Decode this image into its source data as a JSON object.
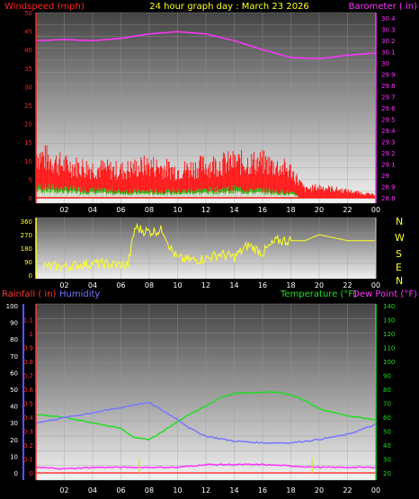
{
  "header": {
    "title": "24 hour graph day : March 23 2026",
    "left_label": "Windspeed (mph)",
    "right_label": "Barometer ( in)"
  },
  "colors": {
    "wind": "#ff1a1a",
    "gust_green": "#22cc22",
    "gust_white": "#e8e8e8",
    "barometer": "#ff33ff",
    "direction": "#ffff22",
    "rain": "#ff3b3b",
    "humidity": "#7777ff",
    "temperature": "#22dd22",
    "dewpoint": "#ff33ff",
    "rain_axis": "#ff3333",
    "humidity_axis": "#5555ff"
  },
  "bottom_header": {
    "rain_label": "Rainfall ( in)",
    "humidity_label": "Humidity",
    "temp_label": "Temperature (°F)",
    "dew_label": "Dew Point (°F)"
  },
  "compass": [
    "N",
    "W",
    "S",
    "E",
    "N"
  ],
  "chart_data": [
    {
      "type": "line",
      "name": "wind-barometer",
      "x_ticks": [
        "02",
        "04",
        "06",
        "08",
        "10",
        "12",
        "14",
        "16",
        "18",
        "20",
        "22",
        "00"
      ],
      "left_axis": {
        "label": "Windspeed (mph)",
        "ticks": [
          0,
          5,
          10,
          15,
          20,
          25,
          30,
          35,
          40,
          45,
          50
        ],
        "range": [
          0,
          50
        ]
      },
      "right_axis": {
        "label": "Barometer ( in)",
        "ticks": [
          "28.8",
          "28.9",
          "29",
          "29.1",
          "29.2",
          "29.3",
          "29.4",
          "29.5",
          "29.6",
          "29.7",
          "29.8",
          "29.9",
          "30",
          "30.1",
          "30.2",
          "30.3",
          "30.4"
        ],
        "range": [
          28.8,
          30.45
        ]
      },
      "barometer": {
        "x": [
          0,
          2,
          4,
          6,
          8,
          10,
          12,
          14,
          16,
          18,
          20,
          22,
          24
        ],
        "y": [
          30.2,
          30.21,
          30.2,
          30.22,
          30.26,
          30.28,
          30.26,
          30.2,
          30.12,
          30.05,
          30.04,
          30.07,
          30.09
        ]
      },
      "wind_avg": {
        "x": [
          0,
          2,
          4,
          6,
          8,
          10,
          12,
          14,
          16,
          18,
          19,
          20,
          24
        ],
        "y": [
          9,
          7,
          6,
          5,
          5,
          5,
          6,
          7,
          6,
          4,
          1,
          1,
          0
        ]
      },
      "wind_gust_max": {
        "x": [
          0,
          2,
          4,
          6,
          8,
          10,
          12,
          14,
          16,
          18,
          19,
          20,
          24
        ],
        "y": [
          16,
          12,
          11,
          10,
          12,
          10,
          12,
          13,
          13,
          10,
          3,
          4,
          1
        ]
      }
    },
    {
      "type": "scatter",
      "name": "wind-direction",
      "x_ticks": [
        "02",
        "04",
        "06",
        "08",
        "10",
        "12",
        "14",
        "16",
        "18",
        "20",
        "22",
        "00"
      ],
      "y_axis": {
        "ticks": [
          0,
          90,
          180,
          270,
          360
        ],
        "range": [
          0,
          360
        ]
      },
      "direction": {
        "x": [
          0.5,
          2,
          4,
          5.5,
          6.5,
          7,
          7.5,
          8,
          9,
          9.5,
          10,
          11,
          12,
          13,
          14,
          15,
          16,
          17,
          18,
          19,
          20,
          22,
          24
        ],
        "y": [
          60,
          55,
          80,
          70,
          70,
          320,
          300,
          290,
          300,
          180,
          110,
          100,
          110,
          140,
          120,
          200,
          150,
          230,
          230,
          230,
          270,
          230,
          230
        ]
      }
    },
    {
      "type": "line",
      "name": "temp-humidity-rain",
      "x_ticks": [
        "02",
        "04",
        "06",
        "08",
        "10",
        "12",
        "14",
        "16",
        "18",
        "20",
        "22",
        "00"
      ],
      "humidity_axis": {
        "label": "Humidity",
        "ticks": [
          0,
          10,
          20,
          30,
          40,
          50,
          60,
          70,
          80,
          90,
          100
        ],
        "range": [
          0,
          100
        ]
      },
      "rain_axis": {
        "label": "Rainfall ( in)",
        "ticks": [
          "0",
          "0.1",
          "0.2",
          "0.3",
          "0.4",
          "0.5",
          "0.6",
          "0.7",
          "0.8",
          "0.9",
          "1",
          "1.1"
        ],
        "range": [
          0,
          1.2
        ]
      },
      "temp_axis": {
        "label": "Temperature (°F)",
        "ticks": [
          20,
          30,
          40,
          50,
          60,
          70,
          80,
          90,
          100,
          110,
          120,
          130,
          140
        ],
        "range": [
          20,
          140
        ]
      },
      "temperature": {
        "x": [
          0,
          2,
          4,
          6,
          7,
          8,
          9,
          10,
          11,
          12,
          13,
          14,
          16,
          17,
          18,
          19,
          20,
          22,
          24
        ],
        "y": [
          62,
          60,
          56,
          52,
          45,
          44,
          50,
          57,
          63,
          68,
          74,
          77,
          78,
          78,
          76,
          72,
          66,
          61,
          58
        ]
      },
      "dewpoint": {
        "x": [
          0,
          2,
          4,
          6,
          8,
          10,
          12,
          14,
          16,
          18,
          20,
          22,
          24
        ],
        "y": [
          24,
          23,
          24,
          24,
          24,
          24,
          26,
          26,
          26,
          25,
          24,
          24,
          24
        ]
      },
      "humidity": {
        "x": [
          0,
          2,
          4,
          6,
          7,
          8,
          9,
          10,
          11,
          12,
          14,
          16,
          18,
          20,
          22,
          24
        ],
        "y": [
          30,
          33,
          36,
          39,
          41,
          42,
          37,
          32,
          26,
          22,
          19,
          18,
          18,
          20,
          23,
          29
        ]
      },
      "rain_marks": {
        "x": [
          7.3,
          19.5
        ],
        "y": [
          0.05,
          0.05
        ]
      }
    }
  ]
}
